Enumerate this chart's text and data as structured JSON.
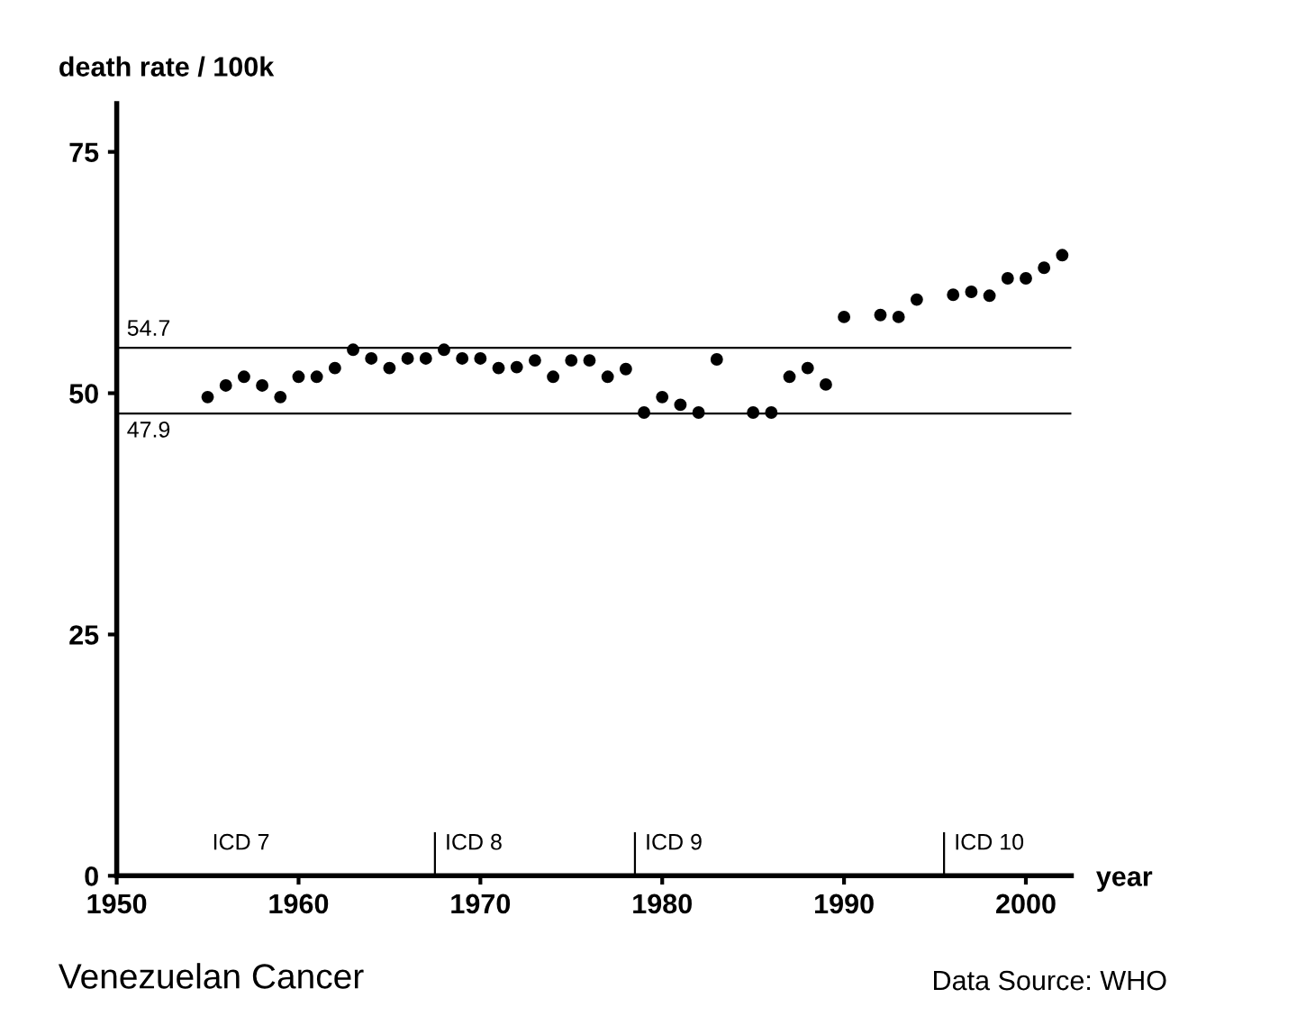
{
  "chart_data": {
    "type": "scatter",
    "title": "Venezuelan Cancer",
    "ylabel": "death rate / 100k",
    "xlabel": "year",
    "x": [
      1955,
      1956,
      1957,
      1958,
      1959,
      1960,
      1961,
      1962,
      1963,
      1964,
      1965,
      1966,
      1967,
      1968,
      1969,
      1970,
      1971,
      1972,
      1973,
      1974,
      1975,
      1976,
      1977,
      1978,
      1979,
      1980,
      1981,
      1982,
      1983,
      1985,
      1986,
      1987,
      1988,
      1989,
      1990,
      1992,
      1993,
      1994,
      1996,
      1997,
      1998,
      1999,
      2000,
      2001,
      2002
    ],
    "series": [
      {
        "color": "#000000",
        "values": [
          49.6,
          50.8,
          51.7,
          50.8,
          49.6,
          51.7,
          51.7,
          52.6,
          54.5,
          53.6,
          52.6,
          53.6,
          53.6,
          54.5,
          53.6,
          53.6,
          52.6,
          52.7,
          53.4,
          51.7,
          53.4,
          53.4,
          51.7,
          52.5,
          48.0,
          49.6,
          48.8,
          48.0,
          53.5,
          48.0,
          48.0,
          51.7,
          52.6,
          50.9,
          57.9,
          58.1,
          57.9,
          59.7,
          60.2,
          60.5,
          60.1,
          61.9,
          61.9,
          63.0,
          64.3
        ]
      }
    ],
    "marker": "circle",
    "grid": false,
    "legend": false,
    "xlim": [
      1950,
      2002.5
    ],
    "ylim": [
      0,
      80
    ],
    "xticks": [
      1950,
      1960,
      1970,
      1980,
      1990,
      2000
    ],
    "yticks": [
      0,
      25,
      50,
      75
    ],
    "ref_lines": [
      {
        "axis": "y",
        "value": 54.7,
        "label": "54.7",
        "color": "#000000"
      },
      {
        "axis": "y",
        "value": 47.9,
        "label": "47.9",
        "color": "#000000"
      },
      {
        "axis": "x",
        "value": 1967.5,
        "label": "ICD 8",
        "color": "#000000"
      },
      {
        "axis": "x",
        "value": 1978.5,
        "label": "ICD 9",
        "color": "#000000"
      },
      {
        "axis": "x",
        "value": 1995.5,
        "label": "ICD 10",
        "color": "#000000"
      }
    ],
    "annotations": [
      "ICD 7",
      "Data Source: WHO"
    ]
  }
}
